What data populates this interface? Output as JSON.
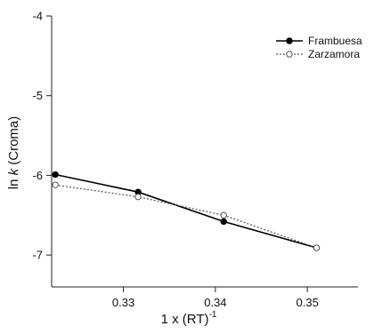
{
  "chart_data": {
    "type": "line",
    "xlabel": {
      "base": "1 x (RT)",
      "superscript": "-1"
    },
    "ylabel": {
      "prefix": "ln ",
      "italic": "k",
      "suffix": " (Croma)"
    },
    "xlim": [
      0.3222,
      0.3555
    ],
    "ylim": [
      -7.4,
      -4.0
    ],
    "x_ticks": [
      0.33,
      0.34,
      0.35
    ],
    "x_tick_labels": [
      "0.33",
      "0.34",
      "0.35"
    ],
    "y_ticks": [
      -4,
      -5,
      -6,
      -7
    ],
    "y_tick_labels": [
      "-4",
      "-5",
      "-6",
      "-7"
    ],
    "grid": false,
    "legend_position": "top-right",
    "series": [
      {
        "name": "Frambuesa",
        "style": "solid",
        "marker": "filled-circle",
        "color": "#000000",
        "x": [
          0.3226,
          0.3316,
          0.3409,
          0.351
        ],
        "y": [
          -5.99,
          -6.21,
          -6.58,
          -6.91
        ]
      },
      {
        "name": "Zarzamora",
        "style": "dotted",
        "marker": "open-circle",
        "color": "#555555",
        "x": [
          0.3226,
          0.3316,
          0.3409,
          0.351
        ],
        "y": [
          -6.12,
          -6.27,
          -6.5,
          -6.91
        ]
      }
    ]
  }
}
